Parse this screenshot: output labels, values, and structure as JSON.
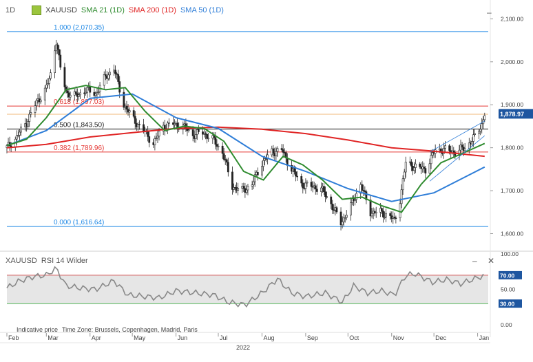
{
  "header": {
    "timeframe": "1D",
    "symbol": "XAUUSD",
    "sma21": "SMA 21 (1D)",
    "sma200": "SMA 200 (1D)",
    "sma50": "SMA 50 (1D)"
  },
  "rsi_header": {
    "symbol": "XAUUSD",
    "indicator": "RSI 14 Wilder"
  },
  "footer": {
    "note": "Indicative price",
    "timezone": "Time Zone: Brussels, Copenhagen, Madrid, Paris"
  },
  "controls": {
    "minimize": "–",
    "close": "✕"
  },
  "colors": {
    "sma21": "#2e8b2e",
    "sma200": "#e02424",
    "sma50": "#2f7ed8",
    "candle": "#222222",
    "fib": "#1e88e5",
    "fib_red": "#e53935",
    "rsi": "#888888",
    "rsi_band": "#e6e6e6",
    "price_badge": "#1e56a0"
  },
  "chart_data": [
    {
      "type": "candlestick",
      "title": "XAUUSD",
      "ylim": [
        1580,
        2115
      ],
      "yticks": [
        1600,
        1700,
        1800,
        1900,
        2000,
        2100
      ],
      "ytick_labels": [
        "1,600.00",
        "1,700.00",
        "1,800.00",
        "1,900.00",
        "2,000.00",
        "2,100.00"
      ],
      "x_months": [
        "Feb",
        "Mar",
        "Apr",
        "May",
        "Jun",
        "Jul",
        "Aug",
        "Sep",
        "Oct",
        "Nov",
        "Dec",
        "Jan"
      ],
      "year_label": "2022",
      "last_price": "1,878.97",
      "fib_levels": [
        {
          "label": "1.000 (2,070.35)",
          "value": 2070.35,
          "color": "fib"
        },
        {
          "label": "0.618 (1,897.03)",
          "value": 1897.03,
          "color": "fib_red"
        },
        {
          "label": "0.500 (1,843.50)",
          "value": 1843.5,
          "color": "dark"
        },
        {
          "label": "0.382 (1,789.96)",
          "value": 1789.96,
          "color": "fib_red"
        },
        {
          "label": "0.000 (1,616.64)",
          "value": 1616.64,
          "color": "fib"
        }
      ],
      "price_series": [
        {
          "d": "2022-02-01",
          "v": 1800
        },
        {
          "d": "2022-02-08",
          "v": 1825
        },
        {
          "d": "2022-02-15",
          "v": 1860
        },
        {
          "d": "2022-02-22",
          "v": 1905
        },
        {
          "d": "2022-03-01",
          "v": 1940
        },
        {
          "d": "2022-03-04",
          "v": 1970
        },
        {
          "d": "2022-03-08",
          "v": 2050
        },
        {
          "d": "2022-03-11",
          "v": 1985
        },
        {
          "d": "2022-03-15",
          "v": 1930
        },
        {
          "d": "2022-03-22",
          "v": 1920
        },
        {
          "d": "2022-03-29",
          "v": 1935
        },
        {
          "d": "2022-04-05",
          "v": 1925
        },
        {
          "d": "2022-04-12",
          "v": 1965
        },
        {
          "d": "2022-04-18",
          "v": 1985
        },
        {
          "d": "2022-04-25",
          "v": 1900
        },
        {
          "d": "2022-05-02",
          "v": 1865
        },
        {
          "d": "2022-05-09",
          "v": 1840
        },
        {
          "d": "2022-05-16",
          "v": 1810
        },
        {
          "d": "2022-05-23",
          "v": 1850
        },
        {
          "d": "2022-05-30",
          "v": 1855
        },
        {
          "d": "2022-06-06",
          "v": 1850
        },
        {
          "d": "2022-06-13",
          "v": 1830
        },
        {
          "d": "2022-06-20",
          "v": 1835
        },
        {
          "d": "2022-06-27",
          "v": 1820
        },
        {
          "d": "2022-07-04",
          "v": 1790
        },
        {
          "d": "2022-07-11",
          "v": 1710
        },
        {
          "d": "2022-07-18",
          "v": 1700
        },
        {
          "d": "2022-07-25",
          "v": 1715
        },
        {
          "d": "2022-08-01",
          "v": 1765
        },
        {
          "d": "2022-08-08",
          "v": 1790
        },
        {
          "d": "2022-08-15",
          "v": 1795
        },
        {
          "d": "2022-08-22",
          "v": 1750
        },
        {
          "d": "2022-08-29",
          "v": 1715
        },
        {
          "d": "2022-09-05",
          "v": 1710
        },
        {
          "d": "2022-09-12",
          "v": 1705
        },
        {
          "d": "2022-09-19",
          "v": 1670
        },
        {
          "d": "2022-09-26",
          "v": 1625
        },
        {
          "d": "2022-10-03",
          "v": 1665
        },
        {
          "d": "2022-10-10",
          "v": 1715
        },
        {
          "d": "2022-10-17",
          "v": 1650
        },
        {
          "d": "2022-10-24",
          "v": 1650
        },
        {
          "d": "2022-10-31",
          "v": 1640
        },
        {
          "d": "2022-11-03",
          "v": 1630
        },
        {
          "d": "2022-11-07",
          "v": 1680
        },
        {
          "d": "2022-11-11",
          "v": 1765
        },
        {
          "d": "2022-11-18",
          "v": 1755
        },
        {
          "d": "2022-11-25",
          "v": 1750
        },
        {
          "d": "2022-12-02",
          "v": 1795
        },
        {
          "d": "2022-12-09",
          "v": 1795
        },
        {
          "d": "2022-12-16",
          "v": 1790
        },
        {
          "d": "2022-12-23",
          "v": 1800
        },
        {
          "d": "2022-12-30",
          "v": 1825
        },
        {
          "d": "2023-01-04",
          "v": 1855
        },
        {
          "d": "2023-01-06",
          "v": 1878.97
        }
      ],
      "sma21": [
        {
          "d": "2022-02-01",
          "v": 1805
        },
        {
          "d": "2022-02-15",
          "v": 1820
        },
        {
          "d": "2022-03-01",
          "v": 1870
        },
        {
          "d": "2022-03-15",
          "v": 1935
        },
        {
          "d": "2022-03-29",
          "v": 1945
        },
        {
          "d": "2022-04-12",
          "v": 1935
        },
        {
          "d": "2022-04-26",
          "v": 1940
        },
        {
          "d": "2022-05-10",
          "v": 1885
        },
        {
          "d": "2022-05-24",
          "v": 1840
        },
        {
          "d": "2022-06-07",
          "v": 1850
        },
        {
          "d": "2022-06-21",
          "v": 1845
        },
        {
          "d": "2022-07-05",
          "v": 1815
        },
        {
          "d": "2022-07-19",
          "v": 1745
        },
        {
          "d": "2022-08-02",
          "v": 1725
        },
        {
          "d": "2022-08-16",
          "v": 1780
        },
        {
          "d": "2022-08-30",
          "v": 1760
        },
        {
          "d": "2022-09-13",
          "v": 1725
        },
        {
          "d": "2022-09-27",
          "v": 1680
        },
        {
          "d": "2022-10-11",
          "v": 1685
        },
        {
          "d": "2022-10-25",
          "v": 1665
        },
        {
          "d": "2022-11-08",
          "v": 1650
        },
        {
          "d": "2022-11-22",
          "v": 1715
        },
        {
          "d": "2022-12-06",
          "v": 1765
        },
        {
          "d": "2022-12-20",
          "v": 1785
        },
        {
          "d": "2023-01-06",
          "v": 1810
        }
      ],
      "sma50": [
        {
          "d": "2022-02-01",
          "v": 1805
        },
        {
          "d": "2022-03-01",
          "v": 1840
        },
        {
          "d": "2022-04-01",
          "v": 1915
        },
        {
          "d": "2022-05-01",
          "v": 1925
        },
        {
          "d": "2022-06-01",
          "v": 1870
        },
        {
          "d": "2022-07-01",
          "v": 1845
        },
        {
          "d": "2022-08-01",
          "v": 1780
        },
        {
          "d": "2022-09-01",
          "v": 1745
        },
        {
          "d": "2022-10-01",
          "v": 1705
        },
        {
          "d": "2022-11-01",
          "v": 1675
        },
        {
          "d": "2022-12-01",
          "v": 1695
        },
        {
          "d": "2023-01-06",
          "v": 1755
        }
      ],
      "sma200": [
        {
          "d": "2022-02-01",
          "v": 1800
        },
        {
          "d": "2022-03-01",
          "v": 1808
        },
        {
          "d": "2022-04-01",
          "v": 1825
        },
        {
          "d": "2022-05-01",
          "v": 1835
        },
        {
          "d": "2022-06-01",
          "v": 1845
        },
        {
          "d": "2022-07-01",
          "v": 1848
        },
        {
          "d": "2022-08-01",
          "v": 1843
        },
        {
          "d": "2022-09-01",
          "v": 1833
        },
        {
          "d": "2022-10-01",
          "v": 1818
        },
        {
          "d": "2022-11-01",
          "v": 1800
        },
        {
          "d": "2022-12-01",
          "v": 1792
        },
        {
          "d": "2023-01-06",
          "v": 1780
        }
      ],
      "channel": {
        "upper": [
          {
            "d": "2022-11-28",
            "v": 1790
          },
          {
            "d": "2023-01-06",
            "v": 1862
          }
        ],
        "lower": [
          {
            "d": "2022-11-28",
            "v": 1722
          },
          {
            "d": "2023-01-06",
            "v": 1828
          }
        ]
      }
    },
    {
      "type": "line",
      "title": "RSI 14 Wilder",
      "ylim": [
        0,
        100
      ],
      "yticks": [
        0,
        30,
        50,
        70,
        100
      ],
      "ytick_labels": [
        "0.00",
        "30.00",
        "50.00",
        "70.00",
        "100.00"
      ],
      "band": [
        30,
        70
      ],
      "band_labels": [
        "30.00",
        "70.00"
      ],
      "rsi": [
        {
          "d": "2022-02-01",
          "v": 52
        },
        {
          "d": "2022-02-10",
          "v": 62
        },
        {
          "d": "2022-02-20",
          "v": 68
        },
        {
          "d": "2022-03-01",
          "v": 70
        },
        {
          "d": "2022-03-08",
          "v": 80
        },
        {
          "d": "2022-03-15",
          "v": 55
        },
        {
          "d": "2022-03-25",
          "v": 52
        },
        {
          "d": "2022-04-05",
          "v": 50
        },
        {
          "d": "2022-04-18",
          "v": 62
        },
        {
          "d": "2022-04-28",
          "v": 42
        },
        {
          "d": "2022-05-10",
          "v": 40
        },
        {
          "d": "2022-05-20",
          "v": 38
        },
        {
          "d": "2022-06-01",
          "v": 48
        },
        {
          "d": "2022-06-15",
          "v": 45
        },
        {
          "d": "2022-06-28",
          "v": 42
        },
        {
          "d": "2022-07-08",
          "v": 32
        },
        {
          "d": "2022-07-20",
          "v": 28
        },
        {
          "d": "2022-08-01",
          "v": 45
        },
        {
          "d": "2022-08-12",
          "v": 65
        },
        {
          "d": "2022-08-22",
          "v": 45
        },
        {
          "d": "2022-09-01",
          "v": 40
        },
        {
          "d": "2022-09-15",
          "v": 45
        },
        {
          "d": "2022-09-27",
          "v": 32
        },
        {
          "d": "2022-10-05",
          "v": 55
        },
        {
          "d": "2022-10-15",
          "v": 45
        },
        {
          "d": "2022-10-25",
          "v": 48
        },
        {
          "d": "2022-11-03",
          "v": 42
        },
        {
          "d": "2022-11-11",
          "v": 70
        },
        {
          "d": "2022-11-18",
          "v": 72
        },
        {
          "d": "2022-11-30",
          "v": 60
        },
        {
          "d": "2022-12-10",
          "v": 64
        },
        {
          "d": "2022-12-20",
          "v": 58
        },
        {
          "d": "2023-01-06",
          "v": 70
        }
      ]
    }
  ]
}
